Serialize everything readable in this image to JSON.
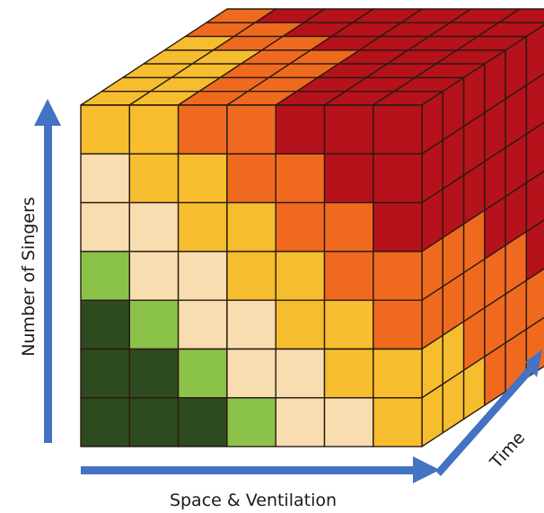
{
  "colors": {
    "dg": "#2e4a1f",
    "lg": "#8bc34a",
    "cr": "#f8ddb0",
    "ye": "#f6bd2e",
    "or": "#ef6a1f",
    "rd": "#b5121b",
    "grid_line": "#2a1a12",
    "arrow": "#4472c4"
  },
  "cube": {
    "front_rows_top_to_bottom": [
      [
        "ye",
        "ye",
        "or",
        "or",
        "rd",
        "rd",
        "rd"
      ],
      [
        "cr",
        "ye",
        "ye",
        "or",
        "or",
        "rd",
        "rd"
      ],
      [
        "cr",
        "cr",
        "ye",
        "ye",
        "or",
        "or",
        "rd"
      ],
      [
        "lg",
        "cr",
        "cr",
        "ye",
        "ye",
        "or",
        "or"
      ],
      [
        "dg",
        "lg",
        "cr",
        "cr",
        "ye",
        "ye",
        "or"
      ],
      [
        "dg",
        "dg",
        "lg",
        "cr",
        "cr",
        "ye",
        "ye"
      ],
      [
        "dg",
        "dg",
        "dg",
        "lg",
        "cr",
        "cr",
        "ye"
      ]
    ],
    "top_rows_back_to_front": [
      [
        "or",
        "rd",
        "rd",
        "rd",
        "rd",
        "rd",
        "rd"
      ],
      [
        "or",
        "or",
        "rd",
        "rd",
        "rd",
        "rd",
        "rd"
      ],
      [
        "ye",
        "or",
        "or",
        "rd",
        "rd",
        "rd",
        "rd"
      ],
      [
        "ye",
        "ye",
        "or",
        "or",
        "rd",
        "rd",
        "rd"
      ],
      [
        "ye",
        "ye",
        "or",
        "or",
        "rd",
        "rd",
        "rd"
      ],
      [
        "ye",
        "ye",
        "or",
        "or",
        "rd",
        "rd",
        "rd"
      ],
      [
        "ye",
        "ye",
        "or",
        "or",
        "rd",
        "rd",
        "rd"
      ]
    ],
    "side_rows_top_to_bottom_depth_front_to_back": [
      [
        "rd",
        "rd",
        "rd",
        "rd",
        "rd",
        "rd",
        "rd"
      ],
      [
        "rd",
        "rd",
        "rd",
        "rd",
        "rd",
        "rd",
        "rd"
      ],
      [
        "rd",
        "rd",
        "rd",
        "rd",
        "rd",
        "rd",
        "rd"
      ],
      [
        "or",
        "or",
        "or",
        "rd",
        "rd",
        "rd",
        "rd"
      ],
      [
        "or",
        "or",
        "or",
        "or",
        "or",
        "rd",
        "rd"
      ],
      [
        "ye",
        "ye",
        "or",
        "or",
        "or",
        "or",
        "rd"
      ],
      [
        "ye",
        "ye",
        "ye",
        "or",
        "or",
        "or",
        "or"
      ]
    ]
  },
  "labels": {
    "y_axis": "Number of Singers",
    "x_axis": "Space & Ventilation",
    "z_axis": "Time"
  }
}
